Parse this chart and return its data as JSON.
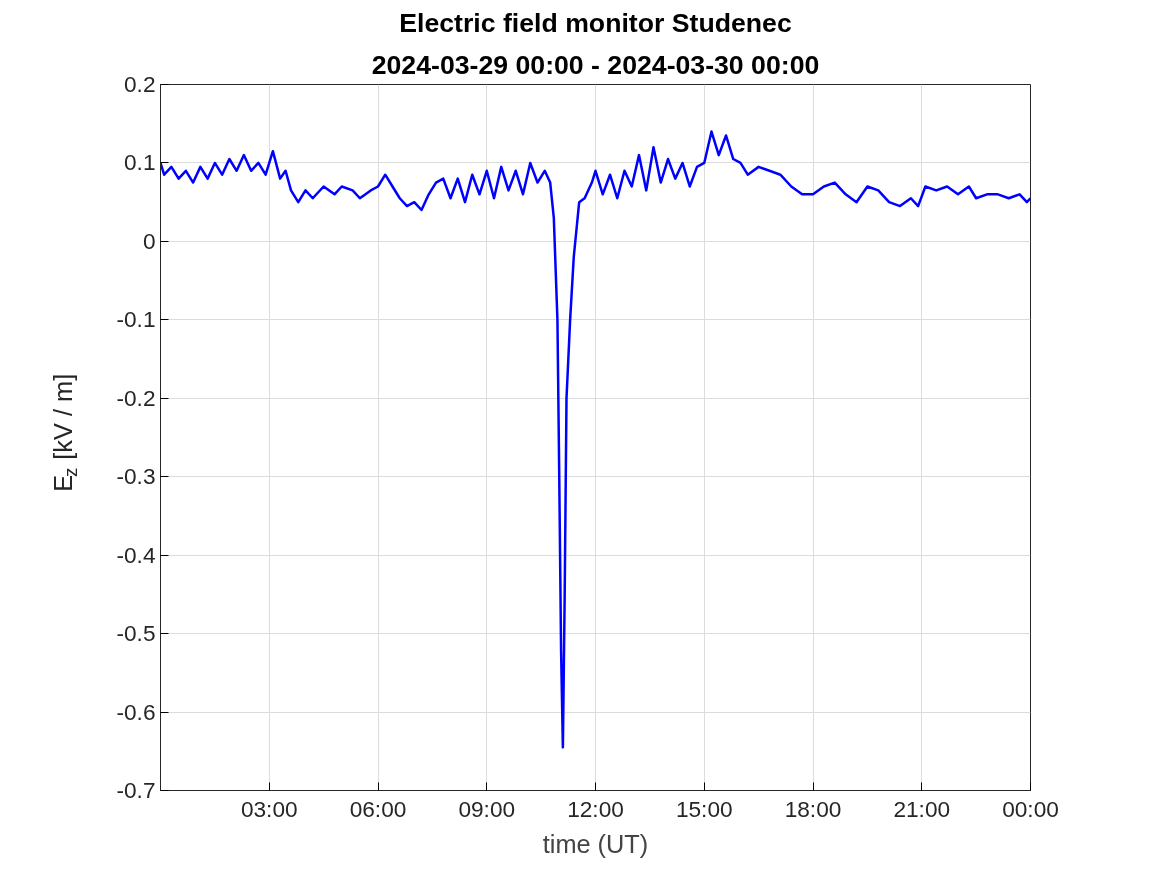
{
  "chart_data": {
    "type": "line",
    "title": "Electric field monitor Studenec",
    "subtitle": "2024-03-29 00:00 - 2024-03-30 00:00",
    "xlabel": "time (UT)",
    "ylabel": "E$_{z}$ [kV / m]",
    "x": [
      0,
      0.1,
      0.3,
      0.5,
      0.7,
      0.9,
      1.1,
      1.3,
      1.5,
      1.7,
      1.9,
      2.1,
      2.3,
      2.5,
      2.7,
      2.9,
      3.1,
      3.3,
      3.45,
      3.6,
      3.8,
      4.0,
      4.2,
      4.5,
      4.8,
      5.0,
      5.3,
      5.5,
      5.8,
      6.0,
      6.2,
      6.4,
      6.6,
      6.8,
      7.0,
      7.2,
      7.4,
      7.6,
      7.8,
      8.0,
      8.2,
      8.4,
      8.6,
      8.8,
      9.0,
      9.2,
      9.4,
      9.6,
      9.8,
      10.0,
      10.2,
      10.4,
      10.6,
      10.75,
      10.85,
      10.95,
      11.0,
      11.05,
      11.1,
      11.15,
      11.2,
      11.3,
      11.4,
      11.55,
      11.7,
      11.9,
      12.0,
      12.2,
      12.4,
      12.6,
      12.8,
      13.0,
      13.2,
      13.4,
      13.6,
      13.8,
      14.0,
      14.2,
      14.4,
      14.6,
      14.8,
      15.0,
      15.2,
      15.4,
      15.6,
      15.8,
      16.0,
      16.2,
      16.5,
      16.8,
      17.1,
      17.4,
      17.7,
      18.0,
      18.3,
      18.6,
      18.9,
      19.2,
      19.5,
      19.8,
      20.1,
      20.4,
      20.7,
      20.9,
      21.1,
      21.4,
      21.7,
      22.0,
      22.3,
      22.5,
      22.8,
      23.1,
      23.4,
      23.7,
      23.9,
      24.0
    ],
    "series": [
      {
        "color": "#0000ff",
        "values": [
          0.1,
          0.085,
          0.095,
          0.08,
          0.09,
          0.075,
          0.095,
          0.08,
          0.1,
          0.085,
          0.105,
          0.09,
          0.11,
          0.09,
          0.1,
          0.085,
          0.115,
          0.08,
          0.09,
          0.065,
          0.05,
          0.065,
          0.055,
          0.07,
          0.06,
          0.07,
          0.065,
          0.055,
          0.065,
          0.07,
          0.085,
          0.07,
          0.055,
          0.045,
          0.05,
          0.04,
          0.06,
          0.075,
          0.08,
          0.055,
          0.08,
          0.05,
          0.085,
          0.06,
          0.09,
          0.055,
          0.095,
          0.065,
          0.09,
          0.06,
          0.1,
          0.075,
          0.09,
          0.075,
          0.03,
          -0.1,
          -0.3,
          -0.52,
          -0.645,
          -0.45,
          -0.2,
          -0.1,
          -0.02,
          0.05,
          0.055,
          0.075,
          0.09,
          0.06,
          0.085,
          0.055,
          0.09,
          0.07,
          0.11,
          0.065,
          0.12,
          0.075,
          0.105,
          0.08,
          0.1,
          0.07,
          0.095,
          0.1,
          0.14,
          0.11,
          0.135,
          0.105,
          0.1,
          0.085,
          0.095,
          0.09,
          0.085,
          0.07,
          0.06,
          0.06,
          0.07,
          0.075,
          0.06,
          0.05,
          0.07,
          0.065,
          0.05,
          0.045,
          0.055,
          0.045,
          0.07,
          0.065,
          0.07,
          0.06,
          0.07,
          0.055,
          0.06,
          0.06,
          0.055,
          0.06,
          0.05,
          0.055
        ]
      }
    ],
    "xlim": [
      0,
      24
    ],
    "xticks": [
      {
        "value": 3,
        "label": "03:00"
      },
      {
        "value": 6,
        "label": "06:00"
      },
      {
        "value": 9,
        "label": "09:00"
      },
      {
        "value": 12,
        "label": "12:00"
      },
      {
        "value": 15,
        "label": "15:00"
      },
      {
        "value": 18,
        "label": "18:00"
      },
      {
        "value": 21,
        "label": "21:00"
      },
      {
        "value": 24,
        "label": "00:00"
      }
    ],
    "ylim": [
      -0.7,
      0.2
    ],
    "yticks": [
      -0.7,
      -0.6,
      -0.5,
      -0.4,
      -0.3,
      -0.2,
      -0.1,
      0,
      0.1,
      0.2
    ],
    "grid": true,
    "marker": "none",
    "line_style": "solid"
  }
}
